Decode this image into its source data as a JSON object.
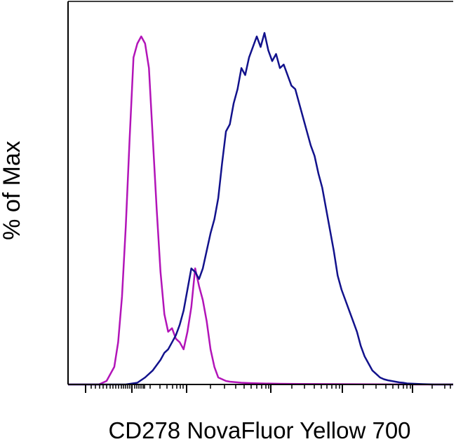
{
  "chart_data": {
    "type": "line",
    "title": "",
    "xlabel": "CD278 NovaFluor Yellow 700",
    "ylabel": "% of Max",
    "x_scale": "logicle",
    "x_tick_labels": [],
    "y_tick_labels": [],
    "xlim": [
      0,
      100
    ],
    "ylim": [
      0,
      100
    ],
    "grid": false,
    "legend": "none",
    "series": [
      {
        "color": "#b214b8",
        "x": [
          0,
          8,
          10,
          12,
          13,
          14,
          15,
          16,
          17,
          18,
          19,
          20,
          21,
          22,
          23,
          24,
          25,
          26,
          27,
          28,
          29,
          30,
          31,
          32,
          33,
          34,
          35,
          36,
          37,
          38,
          39,
          40,
          41,
          42,
          43,
          45,
          47,
          50,
          55,
          60,
          70,
          80,
          90,
          100
        ],
        "y": [
          0,
          0,
          1,
          5,
          12,
          25,
          45,
          70,
          93,
          97,
          99,
          97,
          90,
          70,
          50,
          32,
          20,
          15,
          16,
          13,
          12,
          10,
          15,
          22,
          33,
          28,
          24,
          18,
          10,
          5,
          2,
          1.5,
          1,
          0.8,
          0.7,
          0.5,
          0.4,
          0.3,
          0.2,
          0.15,
          0.1,
          0.05,
          0,
          0
        ]
      },
      {
        "color": "#12128c",
        "x": [
          0,
          15,
          18,
          20,
          22,
          24,
          25,
          26,
          27,
          28,
          29,
          30,
          31,
          32,
          33,
          34,
          35,
          36,
          37,
          38,
          39,
          40,
          41,
          42,
          43,
          44,
          45,
          46,
          47,
          48,
          49,
          50,
          51,
          52,
          53,
          54,
          55,
          56,
          57,
          58,
          59,
          60,
          61,
          62,
          63,
          64,
          65,
          66,
          67,
          68,
          69,
          70,
          71,
          72,
          73,
          74,
          75,
          76,
          77,
          78,
          79,
          80,
          81,
          82,
          83,
          84,
          85,
          86,
          87,
          88,
          90,
          92,
          95,
          100
        ],
        "y": [
          0,
          0,
          0.5,
          2,
          4,
          7,
          9,
          10,
          12,
          14,
          17,
          21,
          27,
          33,
          32,
          30,
          33,
          38,
          43,
          47,
          53,
          63,
          72,
          74,
          80,
          84,
          90,
          88,
          93,
          96,
          99,
          96,
          100,
          95,
          92,
          94,
          90,
          91,
          88,
          85,
          84,
          80,
          76,
          72,
          68,
          65,
          60,
          56,
          50,
          44,
          38,
          31,
          27,
          24,
          21,
          18,
          15,
          11,
          8,
          6,
          4,
          3,
          2,
          1.5,
          1.2,
          1,
          0.8,
          0.6,
          0.5,
          0.3,
          0.2,
          0.1,
          0,
          0
        ]
      }
    ]
  }
}
